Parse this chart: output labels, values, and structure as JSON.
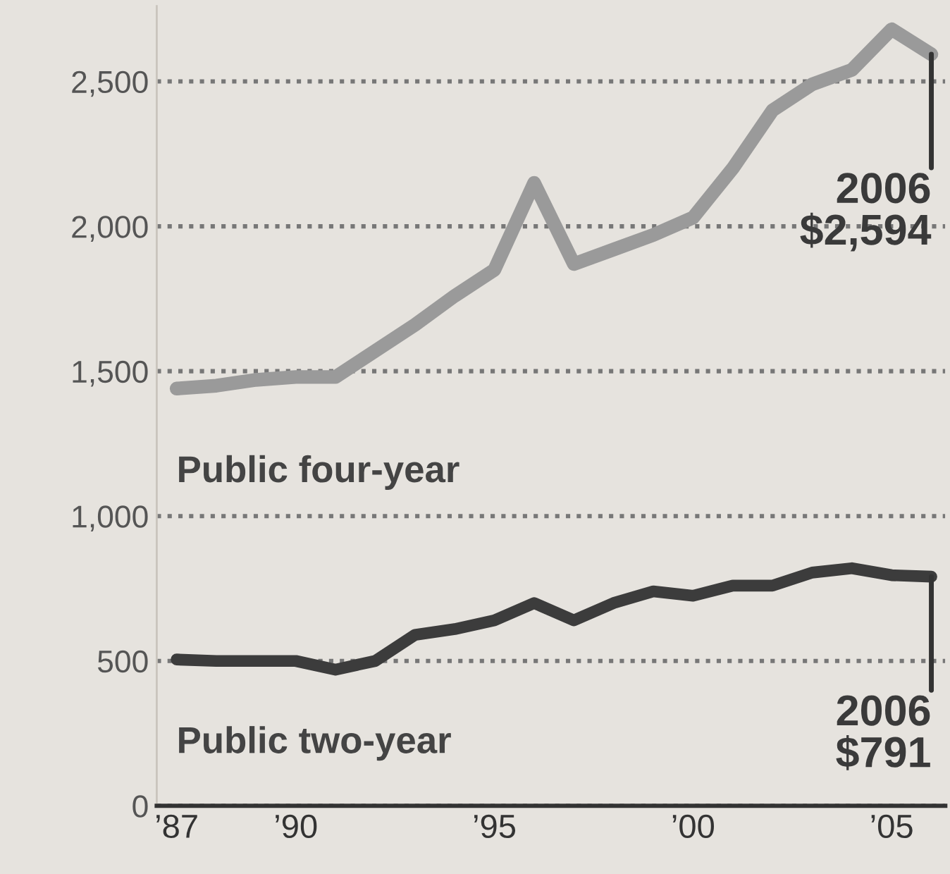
{
  "chart_data": {
    "type": "line",
    "x": [
      1987,
      1988,
      1989,
      1990,
      1991,
      1992,
      1993,
      1994,
      1995,
      1996,
      1997,
      1998,
      1999,
      2000,
      2001,
      2002,
      2003,
      2004,
      2005,
      2006
    ],
    "series": [
      {
        "name": "Public four-year",
        "color": "#9a9a9a",
        "values": [
          1440,
          1450,
          1470,
          1480,
          1480,
          1570,
          1660,
          1760,
          1850,
          2150,
          1870,
          1920,
          1970,
          2030,
          2200,
          2400,
          2490,
          2540,
          2680,
          2594
        ]
      },
      {
        "name": "Public two-year",
        "color": "#3c3c3c",
        "values": [
          505,
          500,
          500,
          500,
          470,
          500,
          590,
          610,
          640,
          700,
          640,
          700,
          740,
          725,
          760,
          760,
          805,
          820,
          796,
          791
        ]
      }
    ],
    "xlim": [
      1986.5,
      2006.35
    ],
    "xticks": [
      {
        "value": 1987,
        "label": "’87"
      },
      {
        "value": 1990,
        "label": "’90"
      },
      {
        "value": 1995,
        "label": "’95"
      },
      {
        "value": 2000,
        "label": "’00"
      },
      {
        "value": 2005,
        "label": "’05"
      }
    ],
    "ylim": [
      0,
      2760
    ],
    "yticks": [
      0,
      {
        "value": 500,
        "label": "500"
      },
      {
        "value": 1000,
        "label": "1,000"
      },
      {
        "value": 1500,
        "label": "1,500"
      },
      {
        "value": 2000,
        "label": "2,000"
      },
      {
        "value": 2500,
        "label": "2,500"
      }
    ],
    "grid": "y",
    "legend": false,
    "marker": "none",
    "line_style": "solid",
    "annotations": [
      {
        "text": "2006\n$2,594",
        "x": 2006,
        "y": 2594
      },
      {
        "text": "2006\n$791",
        "x": 2006,
        "y": 791
      }
    ]
  }
}
